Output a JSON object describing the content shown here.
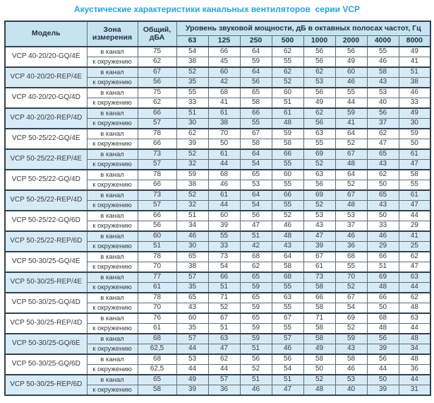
{
  "title": "Акустические характеристики канальных вентиляторов  серии VCP",
  "colors": {
    "title_accent": "#29a3dc",
    "header_bg": "#c7e3f2",
    "group_highlight_bg": "#d7ebf7",
    "border_dark": "#33424b",
    "text": "#3a3a3a"
  },
  "table": {
    "header": {
      "model": "Модель",
      "zone": "Зона\nизмерения",
      "total": "Общий,\nдБА",
      "bands_title": "Уровень звуковой мощности, дБ в октавных полосах частот, Гц",
      "frequencies": [
        "63",
        "125",
        "250",
        "500",
        "1000",
        "2000",
        "4000",
        "8000"
      ]
    },
    "zone_labels": [
      "в канал",
      "к окружению"
    ],
    "groups": [
      {
        "model": "VCP 40-20/20-GQ/4E",
        "highlight": false,
        "rows": [
          {
            "zone": "в канал",
            "total": "75",
            "bands": [
              "54",
              "66",
              "64",
              "62",
              "56",
              "56",
              "55",
              "49"
            ]
          },
          {
            "zone": "к окружению",
            "total": "62",
            "bands": [
              "38",
              "45",
              "59",
              "55",
              "56",
              "49",
              "46",
              "41"
            ]
          }
        ]
      },
      {
        "model": "VCP 40-20/20-REP/4E",
        "highlight": true,
        "rows": [
          {
            "zone": "в канал",
            "total": "67",
            "bands": [
              "52",
              "60",
              "64",
              "62",
              "62",
              "60",
              "58",
              "51"
            ]
          },
          {
            "zone": "к окружению",
            "total": "56",
            "bands": [
              "35",
              "42",
              "56",
              "52",
              "53",
              "46",
              "43",
              "38"
            ]
          }
        ]
      },
      {
        "model": "VCP 40-20/20-GQ/4D",
        "highlight": false,
        "rows": [
          {
            "zone": "в канал",
            "total": "75",
            "bands": [
              "55",
              "68",
              "65",
              "60",
              "56",
              "55",
              "53",
              "46"
            ]
          },
          {
            "zone": "к окружению",
            "total": "62",
            "bands": [
              "33",
              "41",
              "58",
              "51",
              "49",
              "44",
              "40",
              "33"
            ]
          }
        ]
      },
      {
        "model": "VCP 40-20/20-REP/4D",
        "highlight": true,
        "rows": [
          {
            "zone": "в канал",
            "total": "66",
            "bands": [
              "51",
              "61",
              "66",
              "61",
              "62",
              "59",
              "56",
              "49"
            ]
          },
          {
            "zone": "к окружению",
            "total": "57",
            "bands": [
              "30",
              "38",
              "55",
              "48",
              "56",
              "41",
              "37",
              "30"
            ]
          }
        ]
      },
      {
        "model": "VCP 50-25/22-GQ/4E",
        "highlight": false,
        "rows": [
          {
            "zone": "в канал",
            "total": "78",
            "bands": [
              "62",
              "70",
              "67",
              "59",
              "63",
              "64",
              "62",
              "59"
            ]
          },
          {
            "zone": "к окружению",
            "total": "66",
            "bands": [
              "39",
              "50",
              "58",
              "58",
              "55",
              "52",
              "47",
              "50"
            ]
          }
        ]
      },
      {
        "model": "VCP 50-25/22-REP/4E",
        "highlight": true,
        "rows": [
          {
            "zone": "в канал",
            "total": "73",
            "bands": [
              "52",
              "61",
              "64",
              "66",
              "69",
              "67",
              "65",
              "61"
            ]
          },
          {
            "zone": "к окружению",
            "total": "57",
            "bands": [
              "32",
              "44",
              "54",
              "55",
              "52",
              "48",
              "43",
              "47"
            ]
          }
        ]
      },
      {
        "model": "VCP 50-25/22-GQ/4D",
        "highlight": false,
        "rows": [
          {
            "zone": "в канал",
            "total": "78",
            "bands": [
              "59",
              "68",
              "65",
              "60",
              "63",
              "64",
              "62",
              "58"
            ]
          },
          {
            "zone": "к окружению",
            "total": "66",
            "bands": [
              "38",
              "46",
              "53",
              "55",
              "56",
              "52",
              "50",
              "55"
            ]
          }
        ]
      },
      {
        "model": "VCP 50-25/22-REP/4D",
        "highlight": true,
        "rows": [
          {
            "zone": "в канал",
            "total": "73",
            "bands": [
              "52",
              "61",
              "64",
              "66",
              "69",
              "67",
              "65",
              "61"
            ]
          },
          {
            "zone": "к окружению",
            "total": "57",
            "bands": [
              "32",
              "44",
              "54",
              "55",
              "52",
              "48",
              "43",
              "47"
            ]
          }
        ]
      },
      {
        "model": "VCP 50-25/22-GQ/6D",
        "highlight": false,
        "rows": [
          {
            "zone": "в канал",
            "total": "66",
            "bands": [
              "51",
              "60",
              "56",
              "52",
              "53",
              "53",
              "50",
              "44"
            ]
          },
          {
            "zone": "к окружению",
            "total": "56",
            "bands": [
              "34",
              "39",
              "47",
              "46",
              "43",
              "37",
              "33",
              "29"
            ]
          }
        ]
      },
      {
        "model": "VCP 50-25/22-REP/6D",
        "highlight": true,
        "rows": [
          {
            "zone": "в канал",
            "total": "60",
            "bands": [
              "46",
              "55",
              "51",
              "48",
              "47",
              "46",
              "46",
              "41"
            ]
          },
          {
            "zone": "к окружению",
            "total": "51",
            "bands": [
              "30",
              "33",
              "42",
              "43",
              "39",
              "36",
              "29",
              "25"
            ]
          }
        ]
      },
      {
        "model": "VCP 50-30/25-GQ/4E",
        "highlight": false,
        "rows": [
          {
            "zone": "в канал",
            "total": "78",
            "bands": [
              "65",
              "73",
              "68",
              "64",
              "67",
              "68",
              "66",
              "62"
            ]
          },
          {
            "zone": "к окружению",
            "total": "70",
            "bands": [
              "38",
              "54",
              "62",
              "58",
              "61",
              "55",
              "51",
              "47"
            ]
          }
        ]
      },
      {
        "model": "VCP 50-30/25-REP/4E",
        "highlight": true,
        "rows": [
          {
            "zone": "в канал",
            "total": "77",
            "bands": [
              "57",
              "66",
              "65",
              "68",
              "73",
              "70",
              "69",
              "63"
            ]
          },
          {
            "zone": "к окружению",
            "total": "61",
            "bands": [
              "35",
              "51",
              "59",
              "55",
              "58",
              "52",
              "48",
              "44"
            ]
          }
        ]
      },
      {
        "model": "VCP 50-30/25-GQ/4D",
        "highlight": false,
        "rows": [
          {
            "zone": "в канал",
            "total": "78",
            "bands": [
              "65",
              "71",
              "65",
              "63",
              "66",
              "67",
              "66",
              "62"
            ]
          },
          {
            "zone": "к окружению",
            "total": "70",
            "bands": [
              "43",
              "52",
              "59",
              "55",
              "58",
              "54",
              "50",
              "48"
            ]
          }
        ]
      },
      {
        "model": "VCP 50-30/25-REP/4D",
        "highlight": false,
        "rows": [
          {
            "zone": "в канал",
            "total": "76",
            "bands": [
              "60",
              "67",
              "65",
              "67",
              "71",
              "69",
              "68",
              "63"
            ]
          },
          {
            "zone": "к окружению",
            "total": "61",
            "bands": [
              "35",
              "51",
              "59",
              "55",
              "58",
              "52",
              "48",
              "44"
            ]
          }
        ]
      },
      {
        "model": "VCP 50-30/25-GQ/6E",
        "highlight": true,
        "rows": [
          {
            "zone": "в канал",
            "total": "68",
            "bands": [
              "57",
              "63",
              "59",
              "57",
              "58",
              "59",
              "56",
              "48"
            ]
          },
          {
            "zone": "к окружению",
            "total": "62,5",
            "bands": [
              "44",
              "47",
              "51",
              "46",
              "49",
              "43",
              "39",
              "34"
            ]
          }
        ]
      },
      {
        "model": "VCP 50-30/25-GQ/6D",
        "highlight": false,
        "rows": [
          {
            "zone": "в канал",
            "total": "68",
            "bands": [
              "53",
              "62",
              "56",
              "56",
              "58",
              "58",
              "56",
              "48"
            ]
          },
          {
            "zone": "к окружению",
            "total": "62,5",
            "bands": [
              "44",
              "44",
              "52",
              "54",
              "50",
              "46",
              "44",
              "36"
            ]
          }
        ]
      },
      {
        "model": "VCP 50-30/25-REP/6D",
        "highlight": true,
        "rows": [
          {
            "zone": "в канал",
            "total": "65",
            "bands": [
              "49",
              "57",
              "51",
              "51",
              "52",
              "53",
              "50",
              "44"
            ]
          },
          {
            "zone": "к окружению",
            "total": "58",
            "bands": [
              "39",
              "36",
              "46",
              "47",
              "48",
              "40",
              "39",
              "31"
            ]
          }
        ]
      }
    ]
  }
}
